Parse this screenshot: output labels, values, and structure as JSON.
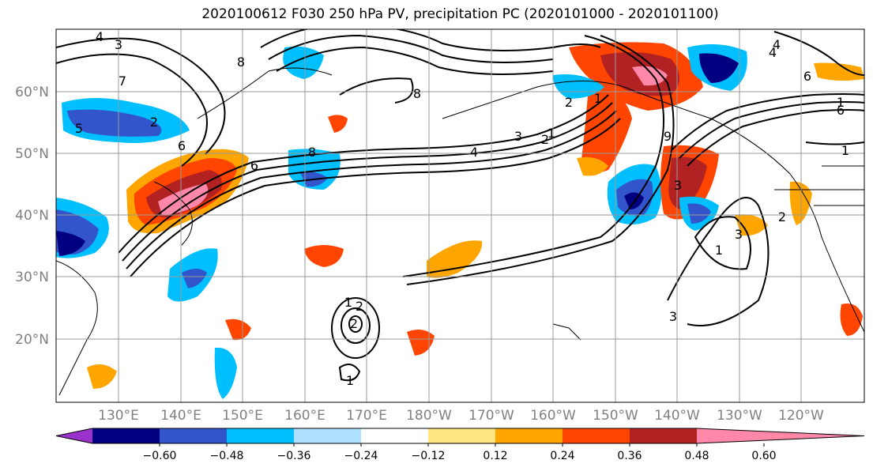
{
  "title": "2020100612 F030 250 hPa PV, precipitation PC (2020101000 - 2020101100)",
  "lat_labels": [
    "60°N",
    "50°N",
    "40°N",
    "30°N",
    "20°N"
  ],
  "lon_labels": [
    "130°E",
    "140°E",
    "150°E",
    "160°E",
    "170°E",
    "180°W",
    "170°W",
    "160°W",
    "150°W",
    "140°W",
    "130°W",
    "120°W"
  ],
  "colorbar": {
    "tick_labels": [
      "−0.60",
      "−0.48",
      "−0.36",
      "−0.24",
      "−0.12",
      "0.12",
      "0.24",
      "0.36",
      "0.48",
      "0.60"
    ],
    "colors": [
      "#9933cc",
      "#000080",
      "#3355cc",
      "#00bfff",
      "#b0e0ff",
      "#ffffff",
      "#ffe680",
      "#ffa500",
      "#ff4500",
      "#b22222",
      "#ff88aa"
    ]
  },
  "pv_labels": [
    "4",
    "3",
    "8",
    "7",
    "5",
    "2",
    "6",
    "8",
    "8",
    "6",
    "4",
    "1",
    "3",
    "2",
    "1",
    "2",
    "6",
    "9",
    "4",
    "1",
    "6",
    "4",
    "1",
    "2",
    "3",
    "2",
    "1",
    "2",
    "3",
    "1",
    "3",
    "1"
  ]
}
